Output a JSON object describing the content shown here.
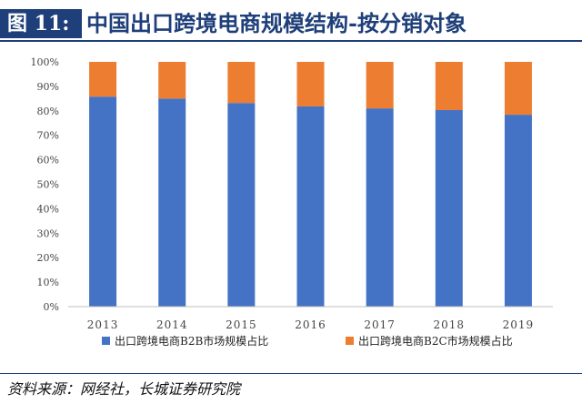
{
  "header": {
    "figure_label": "图 11:",
    "title": "中国出口跨境电商规模结构-按分销对象"
  },
  "footer": {
    "source": "资料来源：网经社，长城证券研究院"
  },
  "chart_data": {
    "type": "bar",
    "stacked": true,
    "categories": [
      "2013",
      "2014",
      "2015",
      "2016",
      "2017",
      "2018",
      "2019"
    ],
    "series": [
      {
        "name": "出口跨境电商B2B市场规模占比",
        "color": "#4472c4",
        "values": [
          85.8,
          85.0,
          83.2,
          81.8,
          81.0,
          80.3,
          78.4
        ]
      },
      {
        "name": "出口跨境电商B2C市场规模占比",
        "color": "#ed7d31",
        "values": [
          14.2,
          15.0,
          16.8,
          18.2,
          19.0,
          19.7,
          21.6
        ]
      }
    ],
    "yticks": [
      "0%",
      "10%",
      "20%",
      "30%",
      "40%",
      "50%",
      "60%",
      "70%",
      "80%",
      "90%",
      "100%"
    ],
    "ylim": [
      0,
      100
    ],
    "legend_position": "bottom",
    "grid": false
  }
}
